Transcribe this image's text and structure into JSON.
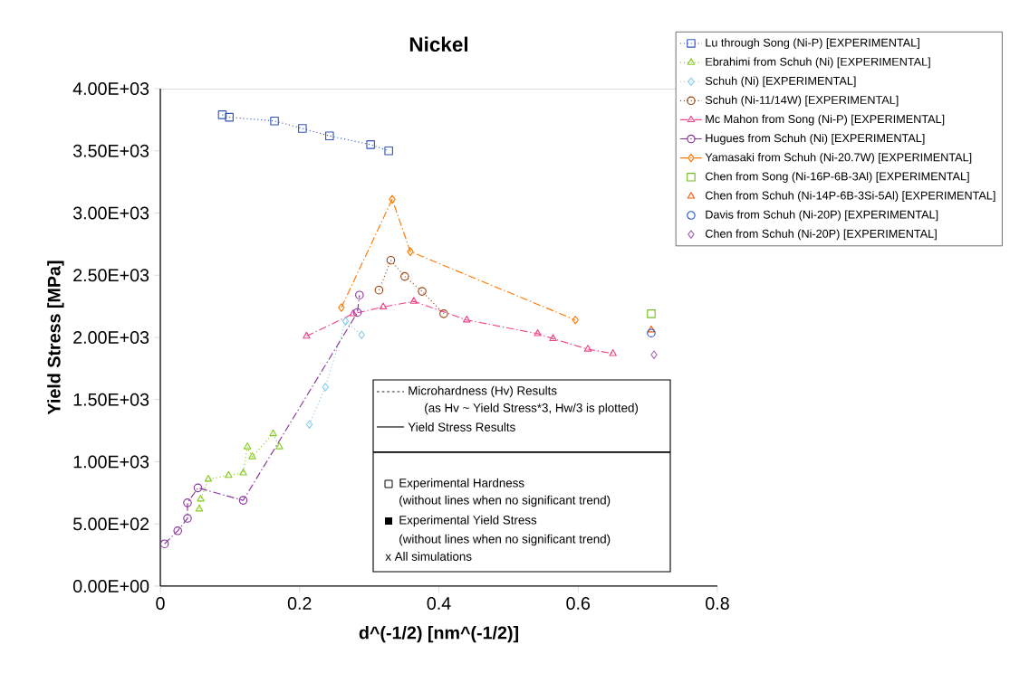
{
  "chart_data": {
    "type": "line",
    "title": "Nickel",
    "xlabel": "d^(-1/2)    [nm^(-1/2)]",
    "ylabel": "Yield Stress [MPa]",
    "xlim": [
      0,
      0.8
    ],
    "ylim": [
      0,
      4000
    ],
    "xticks": [
      0,
      0.2,
      0.4,
      0.6,
      0.8
    ],
    "yticks": [
      {
        "value": 0,
        "label": "0.00E+00"
      },
      {
        "value": 500,
        "label": "5.00E+02"
      },
      {
        "value": 1000,
        "label": "1.00E+03"
      },
      {
        "value": 1500,
        "label": "1.50E+03"
      },
      {
        "value": 2000,
        "label": "2.00E+03"
      },
      {
        "value": 2500,
        "label": "2.50E+03"
      },
      {
        "value": 3000,
        "label": "3.00E+03"
      },
      {
        "value": 3500,
        "label": "3.50E+03"
      },
      {
        "value": 4000,
        "label": "4.00E+03"
      }
    ],
    "grid": false,
    "legend": "top right",
    "series": [
      {
        "name": "Lu through Song (Ni-P) [EXPERIMENTAL]",
        "color": "#3355bb",
        "marker": "square",
        "line_style": "dotted",
        "x": [
          0.089,
          0.099,
          0.164,
          0.204,
          0.243,
          0.302,
          0.328
        ],
        "values": [
          3790,
          3770,
          3740,
          3680,
          3620,
          3550,
          3500
        ]
      },
      {
        "name": "Ebrahimi from Schuh (Ni) [EXPERIMENTAL]",
        "color": "#88cc22",
        "marker": "triangle",
        "line_style": "dotted",
        "x": [
          0.056,
          0.058,
          0.069,
          0.098,
          0.119,
          0.125,
          0.132,
          0.162,
          0.171
        ],
        "values": [
          620,
          700,
          860,
          890,
          910,
          1120,
          1040,
          1225,
          1120
        ]
      },
      {
        "name": "Schuh (Ni) [EXPERIMENTAL]",
        "color": "#88ccee",
        "marker": "diamond",
        "line_style": "dotted",
        "x": [
          0.214,
          0.237,
          0.266,
          0.289
        ],
        "values": [
          1300,
          1600,
          2130,
          2020
        ]
      },
      {
        "name": "Schuh (Ni-11/14W) [EXPERIMENTAL]",
        "color": "#994411",
        "marker": "circle",
        "line_style": "dotted",
        "x": [
          0.314,
          0.331,
          0.351,
          0.376,
          0.407
        ],
        "values": [
          2380,
          2620,
          2490,
          2370,
          2190
        ]
      },
      {
        "name": "Mc Mahon from Song (Ni-P) [EXPERIMENTAL]",
        "color": "#ee4488",
        "marker": "triangle",
        "line_style": "dashed",
        "x": [
          0.21,
          0.277,
          0.32,
          0.364,
          0.44,
          0.542,
          0.564,
          0.614,
          0.65
        ],
        "values": [
          2010,
          2190,
          2245,
          2290,
          2140,
          2030,
          1990,
          1905,
          1870
        ]
      },
      {
        "name": "Hugues from Schuh (Ni) [EXPERIMENTAL]",
        "color": "#883399",
        "marker": "circle",
        "line_style": "dashed",
        "x": [
          0.006,
          0.025,
          0.039,
          0.039,
          0.054,
          0.119,
          0.283,
          0.286
        ],
        "values": [
          340,
          445,
          545,
          670,
          790,
          690,
          2200,
          2340
        ]
      },
      {
        "name": "Yamasaki from Schuh (Ni-20.7W) [EXPERIMENTAL]",
        "color": "#ff7700",
        "marker": "diamond",
        "line_style": "dashed",
        "x": [
          0.26,
          0.333,
          0.359,
          0.596
        ],
        "values": [
          2240,
          3110,
          2690,
          2140
        ]
      },
      {
        "name": "Chen from Song (Ni-16P-6B-3Al) [EXPERIMENTAL]",
        "type": "scatter",
        "color": "#77bb22",
        "marker": "square",
        "x": [
          0.705
        ],
        "values": [
          2190
        ]
      },
      {
        "name": "Chen from Schuh (Ni-14P-6B-3Si-5Al) [EXPERIMENTAL]",
        "type": "scatter",
        "color": "#ff5500",
        "marker": "triangle",
        "x": [
          0.705
        ],
        "values": [
          2060
        ]
      },
      {
        "name": "Davis from Schuh (Ni-20P) [EXPERIMENTAL]",
        "type": "scatter",
        "color": "#2255cc",
        "marker": "circle",
        "x": [
          0.705
        ],
        "values": [
          2035
        ]
      },
      {
        "name": "Chen from Schuh (Ni-20P) [EXPERIMENTAL]",
        "type": "scatter",
        "color": "#aa66bb",
        "marker": "diamond",
        "x": [
          0.709
        ],
        "values": [
          1860
        ]
      }
    ],
    "annotations": [
      "Microhardness (Hv) Results",
      "(as Hv ~ Yield Stress*3, Hw/3 is plotted)",
      "Yield Stress Results",
      "Experimental Hardness",
      "(without lines when no significant trend)",
      "Experimental Yield Stress",
      "(without lines when no significant trend)",
      "x  All simulations"
    ]
  }
}
